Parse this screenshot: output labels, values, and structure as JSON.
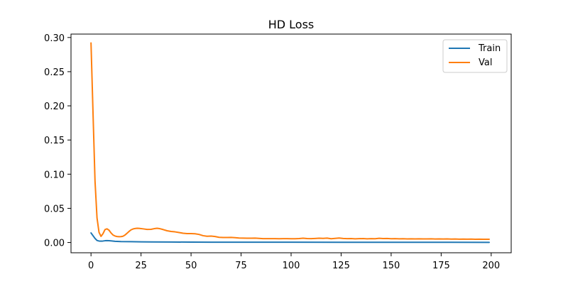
{
  "chart_data": {
    "type": "line",
    "title": "HD Loss",
    "xlabel": "",
    "ylabel": "",
    "xlim": [
      -10,
      210
    ],
    "ylim": [
      -0.015,
      0.305
    ],
    "xticks": [
      0,
      25,
      50,
      75,
      100,
      125,
      150,
      175,
      200
    ],
    "yticks": [
      0.0,
      0.05,
      0.1,
      0.15,
      0.2,
      0.25,
      0.3
    ],
    "ytick_labels": [
      "0.00",
      "0.05",
      "0.10",
      "0.15",
      "0.20",
      "0.25",
      "0.30"
    ],
    "grid": false,
    "legend": "top-right",
    "series": [
      {
        "name": "Train",
        "color": "#1f77b4",
        "points": [
          [
            0,
            0.014
          ],
          [
            1,
            0.01
          ],
          [
            2,
            0.006
          ],
          [
            3,
            0.003
          ],
          [
            4,
            0.0022
          ],
          [
            5,
            0.002
          ],
          [
            6,
            0.0022
          ],
          [
            7,
            0.0026
          ],
          [
            8,
            0.0028
          ],
          [
            9,
            0.0027
          ],
          [
            10,
            0.0024
          ],
          [
            12,
            0.0018
          ],
          [
            15,
            0.0014
          ],
          [
            20,
            0.0012
          ],
          [
            25,
            0.001
          ],
          [
            30,
            0.0009
          ],
          [
            40,
            0.0007
          ],
          [
            50,
            0.0006
          ],
          [
            60,
            0.0005
          ],
          [
            75,
            0.00045
          ],
          [
            100,
            0.0004
          ],
          [
            125,
            0.00035
          ],
          [
            150,
            0.0003
          ],
          [
            175,
            0.00028
          ],
          [
            199,
            0.00025
          ]
        ]
      },
      {
        "name": "Val",
        "color": "#ff7f0e",
        "points": [
          [
            0,
            0.292
          ],
          [
            1,
            0.19
          ],
          [
            2,
            0.09
          ],
          [
            3,
            0.036
          ],
          [
            4,
            0.015
          ],
          [
            5,
            0.009
          ],
          [
            6,
            0.013
          ],
          [
            7,
            0.019
          ],
          [
            8,
            0.02
          ],
          [
            9,
            0.018
          ],
          [
            10,
            0.014
          ],
          [
            11,
            0.011
          ],
          [
            12,
            0.0095
          ],
          [
            13,
            0.0088
          ],
          [
            14,
            0.0085
          ],
          [
            15,
            0.0086
          ],
          [
            16,
            0.0092
          ],
          [
            17,
            0.011
          ],
          [
            18,
            0.0135
          ],
          [
            19,
            0.0162
          ],
          [
            20,
            0.0185
          ],
          [
            21,
            0.0198
          ],
          [
            22,
            0.0205
          ],
          [
            23,
            0.0208
          ],
          [
            24,
            0.0207
          ],
          [
            26,
            0.02
          ],
          [
            28,
            0.0192
          ],
          [
            30,
            0.0193
          ],
          [
            32,
            0.0205
          ],
          [
            33,
            0.0208
          ],
          [
            34,
            0.0205
          ],
          [
            36,
            0.019
          ],
          [
            38,
            0.0172
          ],
          [
            40,
            0.0162
          ],
          [
            42,
            0.0156
          ],
          [
            44,
            0.0146
          ],
          [
            46,
            0.0136
          ],
          [
            48,
            0.013
          ],
          [
            50,
            0.013
          ],
          [
            52,
            0.0128
          ],
          [
            54,
            0.0118
          ],
          [
            56,
            0.01
          ],
          [
            58,
            0.0092
          ],
          [
            60,
            0.0094
          ],
          [
            62,
            0.0088
          ],
          [
            64,
            0.0076
          ],
          [
            66,
            0.0073
          ],
          [
            68,
            0.0074
          ],
          [
            70,
            0.0075
          ],
          [
            72,
            0.0071
          ],
          [
            74,
            0.0066
          ],
          [
            76,
            0.0064
          ],
          [
            78,
            0.0063
          ],
          [
            80,
            0.0063
          ],
          [
            82,
            0.0064
          ],
          [
            84,
            0.0061
          ],
          [
            86,
            0.0057
          ],
          [
            88,
            0.0056
          ],
          [
            90,
            0.0057
          ],
          [
            92,
            0.0056
          ],
          [
            94,
            0.0055
          ],
          [
            96,
            0.0056
          ],
          [
            98,
            0.0056
          ],
          [
            100,
            0.0055
          ],
          [
            102,
            0.0055
          ],
          [
            104,
            0.0058
          ],
          [
            106,
            0.0063
          ],
          [
            108,
            0.0058
          ],
          [
            110,
            0.0056
          ],
          [
            112,
            0.0059
          ],
          [
            114,
            0.0063
          ],
          [
            116,
            0.0061
          ],
          [
            118,
            0.0064
          ],
          [
            120,
            0.0055
          ],
          [
            122,
            0.006
          ],
          [
            124,
            0.0066
          ],
          [
            126,
            0.0059
          ],
          [
            128,
            0.0056
          ],
          [
            130,
            0.0058
          ],
          [
            132,
            0.0054
          ],
          [
            134,
            0.0056
          ],
          [
            136,
            0.0058
          ],
          [
            138,
            0.0054
          ],
          [
            140,
            0.0057
          ],
          [
            142,
            0.0055
          ],
          [
            144,
            0.0062
          ],
          [
            146,
            0.0058
          ],
          [
            148,
            0.0059
          ],
          [
            150,
            0.0055
          ],
          [
            152,
            0.0056
          ],
          [
            154,
            0.0054
          ],
          [
            156,
            0.0055
          ],
          [
            158,
            0.0053
          ],
          [
            160,
            0.0054
          ],
          [
            162,
            0.0052
          ],
          [
            164,
            0.0054
          ],
          [
            166,
            0.0052
          ],
          [
            168,
            0.0053
          ],
          [
            170,
            0.0054
          ],
          [
            172,
            0.0051
          ],
          [
            174,
            0.0052
          ],
          [
            176,
            0.0051
          ],
          [
            178,
            0.0053
          ],
          [
            180,
            0.005
          ],
          [
            182,
            0.0051
          ],
          [
            184,
            0.0049
          ],
          [
            186,
            0.005
          ],
          [
            188,
            0.0049
          ],
          [
            190,
            0.005
          ],
          [
            192,
            0.0048
          ],
          [
            194,
            0.0049
          ],
          [
            196,
            0.0047
          ],
          [
            198,
            0.0048
          ],
          [
            199,
            0.0048
          ]
        ]
      }
    ]
  }
}
